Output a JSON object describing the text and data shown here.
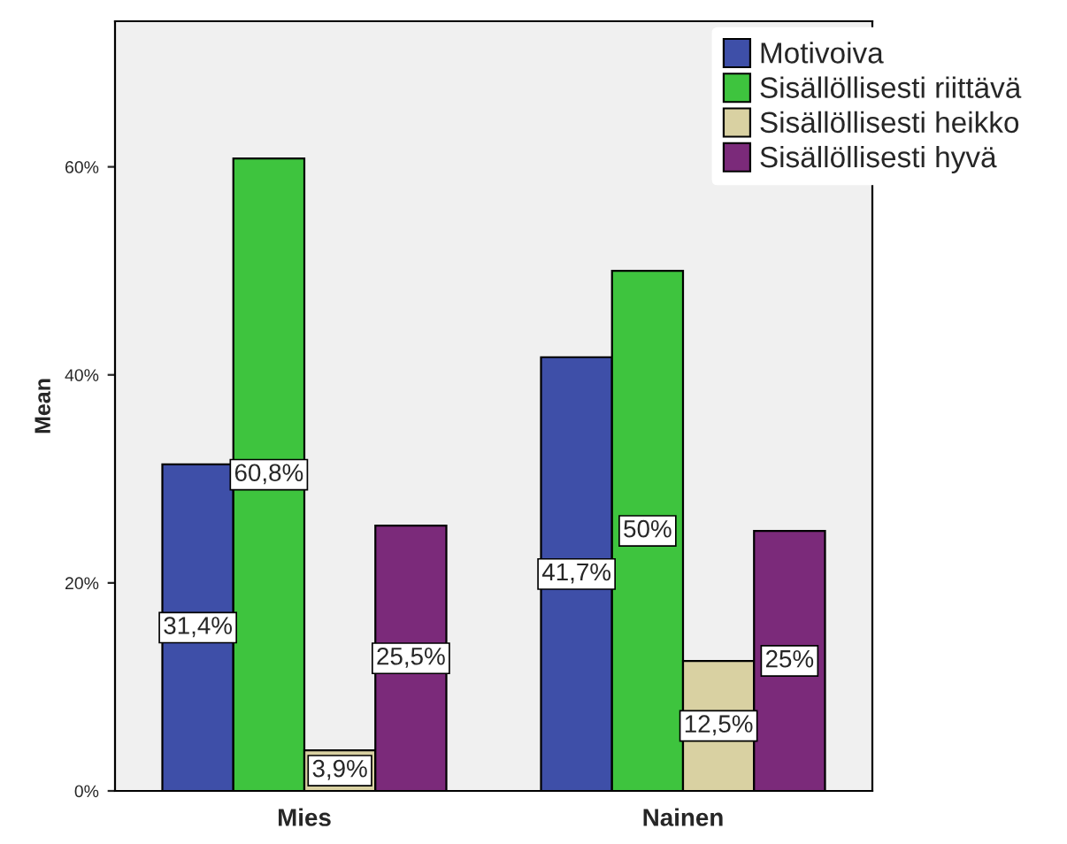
{
  "chart_data": {
    "type": "bar",
    "ylabel": "Mean",
    "categories": [
      "Mies",
      "Nainen"
    ],
    "series": [
      {
        "name": "Motivoiva",
        "color": "#3e4fa8",
        "values": [
          31.4,
          41.7
        ],
        "value_labels": [
          "31,4%",
          "41,7%"
        ]
      },
      {
        "name": "Sisällöllisesti riittävä",
        "color": "#3ec43e",
        "values": [
          60.8,
          50
        ],
        "value_labels": [
          "60,8%",
          "50%"
        ]
      },
      {
        "name": "Sisällöllisesti heikko",
        "color": "#d9d1a2",
        "values": [
          3.9,
          12.5
        ],
        "value_labels": [
          "3,9%",
          "12,5%"
        ]
      },
      {
        "name": "Sisällöllisesti hyvä",
        "color": "#7b2a7a",
        "values": [
          25.5,
          25
        ],
        "value_labels": [
          "25,5%",
          "25%"
        ]
      }
    ],
    "ylim": [
      0,
      74
    ],
    "yticks": [
      {
        "value": 0,
        "label": "0%"
      },
      {
        "value": 20,
        "label": "20%"
      },
      {
        "value": 40,
        "label": "40%"
      },
      {
        "value": 60,
        "label": "60%"
      }
    ],
    "grid": false,
    "legend": "top right"
  }
}
